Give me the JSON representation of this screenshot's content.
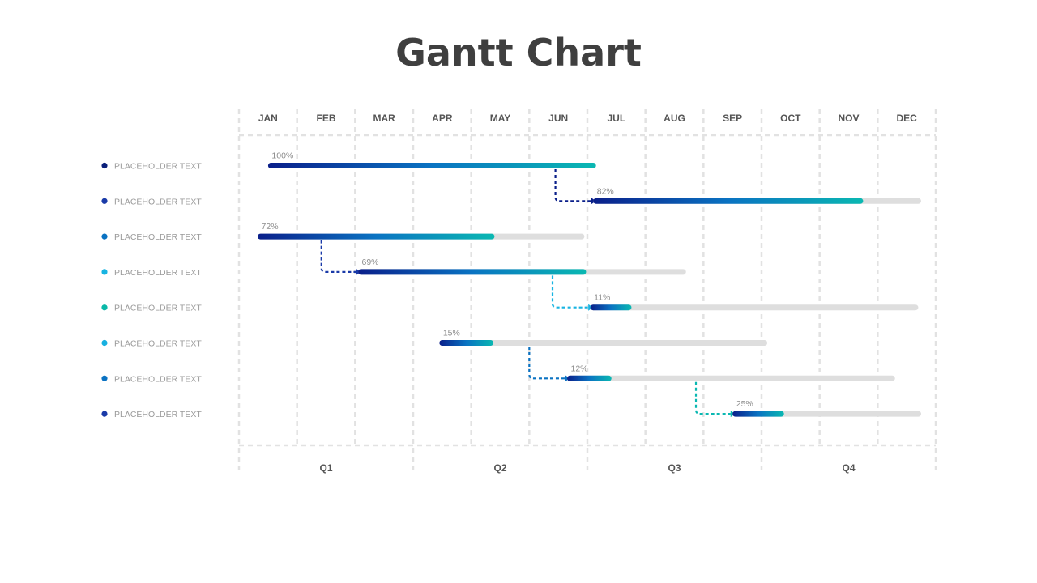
{
  "title": "Gantt Chart",
  "chart_data": {
    "type": "gantt",
    "title": "Gantt Chart",
    "months": [
      "JAN",
      "FEB",
      "MAR",
      "APR",
      "MAY",
      "JUN",
      "JUL",
      "AUG",
      "SEP",
      "OCT",
      "NOV",
      "DEC"
    ],
    "quarters": [
      "Q1",
      "Q2",
      "Q3",
      "Q4"
    ],
    "grid": true,
    "colors": {
      "gradient_start": "#0a1f8a",
      "gradient_mid": "#0a73c2",
      "gradient_end": "#0ab8b2",
      "track": "#dedede",
      "grid": "#e2e2e2"
    },
    "tasks": [
      {
        "label": "PLACEHOLDER TEXT",
        "dot_color": "#0a1f7a",
        "start_month": 0.55,
        "end_month": 6.1,
        "progress": 100,
        "progress_label": "100%"
      },
      {
        "label": "PLACEHOLDER TEXT",
        "dot_color": "#1a3aa8",
        "start_month": 6.15,
        "end_month": 11.7,
        "progress": 82,
        "progress_label": "82%"
      },
      {
        "label": "PLACEHOLDER TEXT",
        "dot_color": "#0a72c2",
        "start_month": 0.37,
        "end_month": 5.9,
        "progress": 72,
        "progress_label": "72%"
      },
      {
        "label": "PLACEHOLDER TEXT",
        "dot_color": "#17b4e2",
        "start_month": 2.1,
        "end_month": 7.65,
        "progress": 69,
        "progress_label": "69%"
      },
      {
        "label": "PLACEHOLDER TEXT",
        "dot_color": "#0ab8a8",
        "start_month": 6.1,
        "end_month": 11.65,
        "progress": 11,
        "progress_label": "11%"
      },
      {
        "label": "PLACEHOLDER TEXT",
        "dot_color": "#17b0e0",
        "start_month": 3.5,
        "end_month": 9.05,
        "progress": 15,
        "progress_label": "15%"
      },
      {
        "label": "PLACEHOLDER TEXT",
        "dot_color": "#0a72c2",
        "start_month": 5.7,
        "end_month": 11.25,
        "progress": 12,
        "progress_label": "12%"
      },
      {
        "label": "PLACEHOLDER TEXT",
        "dot_color": "#1a3aa8",
        "start_month": 8.55,
        "end_month": 11.7,
        "progress": 25,
        "progress_label": "25%"
      }
    ],
    "dependencies": [
      {
        "from": 0,
        "to": 1,
        "from_month": 5.45,
        "color": "#0a1f8a"
      },
      {
        "from": 2,
        "to": 3,
        "from_month": 1.42,
        "color": "#1a3aa8"
      },
      {
        "from": 3,
        "to": 4,
        "from_month": 5.4,
        "color": "#17b4e2"
      },
      {
        "from": 5,
        "to": 6,
        "from_month": 5.0,
        "color": "#0a72c2"
      },
      {
        "from": 6,
        "to": 7,
        "from_month": 7.87,
        "color": "#0ab8b2"
      }
    ]
  }
}
